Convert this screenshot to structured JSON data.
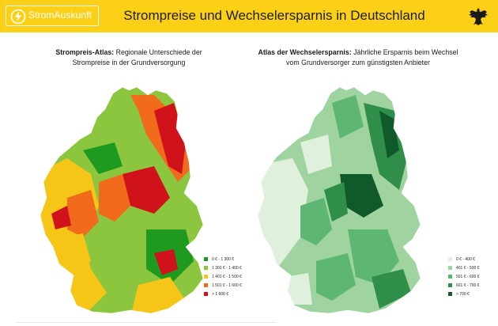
{
  "header": {
    "brand": "StromAuskunft",
    "title": "Strompreise und Wechselersparnis in Deutschland",
    "background_color": "#fcd016"
  },
  "left_map": {
    "title_bold": "Strompreis-Atlas:",
    "title_rest": " Regionale Unterschiede der Strompreise in der Grundversorgung",
    "legend": [
      {
        "label": "0 € - 1 300 €",
        "color": "#1e9a1e"
      },
      {
        "label": "1 301 € - 1 400 €",
        "color": "#8cc63f"
      },
      {
        "label": "1 401 € - 1 500 €",
        "color": "#f5c518"
      },
      {
        "label": "1 501 € - 1 600 €",
        "color": "#f26b1d"
      },
      {
        "label": "> 1 600 €",
        "color": "#d0121b"
      }
    ]
  },
  "right_map": {
    "title_bold": "Atlas der Wechselersparnis:",
    "title_rest": " Jährliche Ersparnis beim Wechsel vom Grundversorger zum günstigsten Anbieter",
    "legend": [
      {
        "label": "0 € - 400 €",
        "color": "#dff0dc"
      },
      {
        "label": "401 € - 500 €",
        "color": "#9fd4a0"
      },
      {
        "label": "501 € - 600 €",
        "color": "#5db672"
      },
      {
        "label": "601 € - 700 €",
        "color": "#2f8f4a"
      },
      {
        "label": "> 700 €",
        "color": "#10592a"
      }
    ]
  }
}
